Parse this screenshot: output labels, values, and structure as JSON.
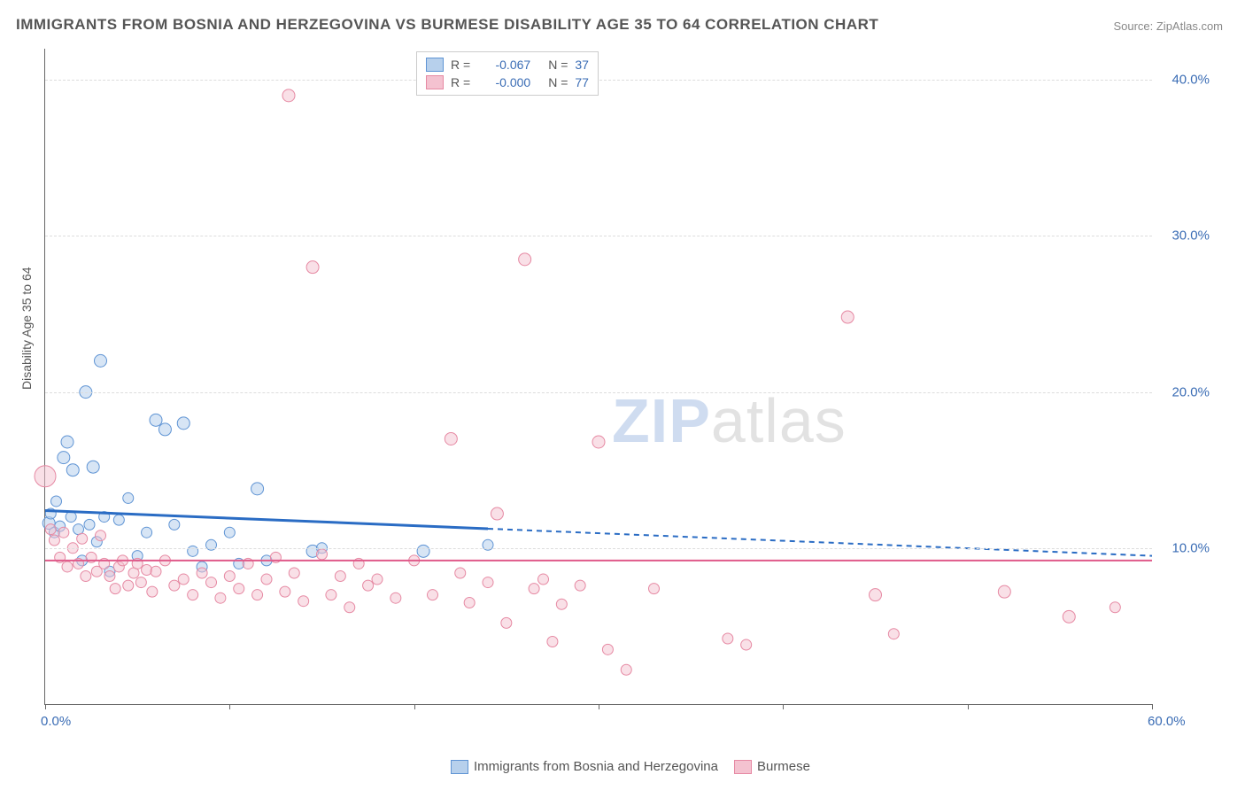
{
  "title": "IMMIGRANTS FROM BOSNIA AND HERZEGOVINA VS BURMESE DISABILITY AGE 35 TO 64 CORRELATION CHART",
  "source": "Source: ZipAtlas.com",
  "y_axis_title": "Disability Age 35 to 64",
  "watermark_a": "ZIP",
  "watermark_b": "atlas",
  "chart": {
    "type": "scatter",
    "background_color": "#ffffff",
    "grid_color": "#dddddd",
    "axis_color": "#666666",
    "label_color": "#3b6db5",
    "xlim": [
      0,
      60
    ],
    "ylim": [
      0,
      42
    ],
    "x_ticks": [
      0,
      10,
      20,
      30,
      40,
      50,
      60
    ],
    "x_tick_labels": {
      "0": "0.0%",
      "60": "60.0%"
    },
    "y_ticks": [
      10,
      20,
      30,
      40
    ],
    "y_tick_labels": {
      "10": "10.0%",
      "20": "20.0%",
      "30": "30.0%",
      "40": "40.0%"
    },
    "series": [
      {
        "key": "bosnia",
        "label": "Immigrants from Bosnia and Herzegovina",
        "fill": "#b7d0ec",
        "stroke": "#5f94d4",
        "fill_opacity": 0.55,
        "r_value": "-0.067",
        "n_value": "37",
        "trend": {
          "y_start": 12.4,
          "y_end": 9.5,
          "solid_x_end": 24,
          "color": "#2a6cc4",
          "width": 3
        },
        "points": [
          [
            0.2,
            11.6,
            7
          ],
          [
            0.3,
            12.2,
            6
          ],
          [
            0.5,
            11.0,
            6
          ],
          [
            0.6,
            13.0,
            6
          ],
          [
            0.8,
            11.4,
            6
          ],
          [
            1.0,
            15.8,
            7
          ],
          [
            1.2,
            16.8,
            7
          ],
          [
            1.4,
            12.0,
            6
          ],
          [
            1.5,
            15.0,
            7
          ],
          [
            1.8,
            11.2,
            6
          ],
          [
            2.0,
            9.2,
            6
          ],
          [
            2.2,
            20.0,
            7
          ],
          [
            2.4,
            11.5,
            6
          ],
          [
            2.6,
            15.2,
            7
          ],
          [
            2.8,
            10.4,
            6
          ],
          [
            3.0,
            22.0,
            7
          ],
          [
            3.2,
            12.0,
            6
          ],
          [
            3.5,
            8.5,
            6
          ],
          [
            4.0,
            11.8,
            6
          ],
          [
            4.5,
            13.2,
            6
          ],
          [
            5.0,
            9.5,
            6
          ],
          [
            5.5,
            11.0,
            6
          ],
          [
            6.0,
            18.2,
            7
          ],
          [
            6.5,
            17.6,
            7
          ],
          [
            7.0,
            11.5,
            6
          ],
          [
            7.5,
            18.0,
            7
          ],
          [
            8.0,
            9.8,
            6
          ],
          [
            8.5,
            8.8,
            6
          ],
          [
            9.0,
            10.2,
            6
          ],
          [
            10.0,
            11.0,
            6
          ],
          [
            10.5,
            9.0,
            6
          ],
          [
            11.5,
            13.8,
            7
          ],
          [
            12.0,
            9.2,
            6
          ],
          [
            14.5,
            9.8,
            7
          ],
          [
            15.0,
            10.0,
            6
          ],
          [
            20.5,
            9.8,
            7
          ],
          [
            24.0,
            10.2,
            6
          ]
        ]
      },
      {
        "key": "burmese",
        "label": "Burmese",
        "fill": "#f4c2d0",
        "stroke": "#e689a3",
        "fill_opacity": 0.5,
        "r_value": "-0.000",
        "n_value": "77",
        "trend": {
          "y_start": 9.2,
          "y_end": 9.2,
          "solid_x_end": 60,
          "color": "#e05a8a",
          "width": 2
        },
        "points": [
          [
            0.0,
            14.6,
            12
          ],
          [
            0.3,
            11.2,
            6
          ],
          [
            0.5,
            10.5,
            6
          ],
          [
            0.8,
            9.4,
            6
          ],
          [
            1.0,
            11.0,
            6
          ],
          [
            1.2,
            8.8,
            6
          ],
          [
            1.5,
            10.0,
            6
          ],
          [
            1.8,
            9.0,
            6
          ],
          [
            2.0,
            10.6,
            6
          ],
          [
            2.2,
            8.2,
            6
          ],
          [
            2.5,
            9.4,
            6
          ],
          [
            2.8,
            8.5,
            6
          ],
          [
            3.0,
            10.8,
            6
          ],
          [
            3.2,
            9.0,
            6
          ],
          [
            3.5,
            8.2,
            6
          ],
          [
            3.8,
            7.4,
            6
          ],
          [
            4.0,
            8.8,
            6
          ],
          [
            4.2,
            9.2,
            6
          ],
          [
            4.5,
            7.6,
            6
          ],
          [
            4.8,
            8.4,
            6
          ],
          [
            5.0,
            9.0,
            6
          ],
          [
            5.2,
            7.8,
            6
          ],
          [
            5.5,
            8.6,
            6
          ],
          [
            5.8,
            7.2,
            6
          ],
          [
            6.0,
            8.5,
            6
          ],
          [
            6.5,
            9.2,
            6
          ],
          [
            7.0,
            7.6,
            6
          ],
          [
            7.5,
            8.0,
            6
          ],
          [
            8.0,
            7.0,
            6
          ],
          [
            8.5,
            8.4,
            6
          ],
          [
            9.0,
            7.8,
            6
          ],
          [
            9.5,
            6.8,
            6
          ],
          [
            10.0,
            8.2,
            6
          ],
          [
            10.5,
            7.4,
            6
          ],
          [
            11.0,
            9.0,
            6
          ],
          [
            11.5,
            7.0,
            6
          ],
          [
            12.0,
            8.0,
            6
          ],
          [
            12.5,
            9.4,
            6
          ],
          [
            13.0,
            7.2,
            6
          ],
          [
            13.2,
            39.0,
            7
          ],
          [
            13.5,
            8.4,
            6
          ],
          [
            14.0,
            6.6,
            6
          ],
          [
            14.5,
            28.0,
            7
          ],
          [
            15.0,
            9.6,
            6
          ],
          [
            15.5,
            7.0,
            6
          ],
          [
            16.0,
            8.2,
            6
          ],
          [
            16.5,
            6.2,
            6
          ],
          [
            17.0,
            9.0,
            6
          ],
          [
            17.5,
            7.6,
            6
          ],
          [
            18.0,
            8.0,
            6
          ],
          [
            19.0,
            6.8,
            6
          ],
          [
            20.0,
            9.2,
            6
          ],
          [
            21.0,
            7.0,
            6
          ],
          [
            22.0,
            17.0,
            7
          ],
          [
            22.5,
            8.4,
            6
          ],
          [
            23.0,
            6.5,
            6
          ],
          [
            24.0,
            7.8,
            6
          ],
          [
            24.5,
            12.2,
            7
          ],
          [
            25.0,
            5.2,
            6
          ],
          [
            26.0,
            28.5,
            7
          ],
          [
            26.5,
            7.4,
            6
          ],
          [
            27.0,
            8.0,
            6
          ],
          [
            27.5,
            4.0,
            6
          ],
          [
            28.0,
            6.4,
            6
          ],
          [
            29.0,
            7.6,
            6
          ],
          [
            30.0,
            16.8,
            7
          ],
          [
            30.5,
            3.5,
            6
          ],
          [
            31.5,
            2.2,
            6
          ],
          [
            33.0,
            7.4,
            6
          ],
          [
            37.0,
            4.2,
            6
          ],
          [
            38.0,
            3.8,
            6
          ],
          [
            43.5,
            24.8,
            7
          ],
          [
            45.0,
            7.0,
            7
          ],
          [
            46.0,
            4.5,
            6
          ],
          [
            52.0,
            7.2,
            7
          ],
          [
            55.5,
            5.6,
            7
          ],
          [
            58.0,
            6.2,
            6
          ]
        ]
      }
    ]
  },
  "legend_stats": {
    "r_label": "R",
    "n_label": "N",
    "eq": "="
  }
}
